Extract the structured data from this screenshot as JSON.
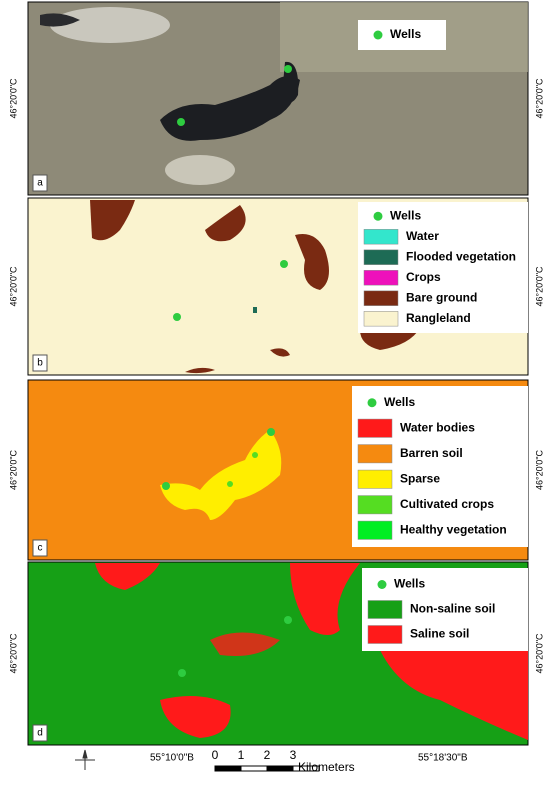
{
  "coordinates": {
    "lat": "46°20'0\"C",
    "lon_left": "55°10'0\"B",
    "lon_right": "55°18'30\"B"
  },
  "panels": [
    {
      "label": "a",
      "legend": [
        {
          "label": "Wells",
          "color": "#2ecc40"
        }
      ]
    },
    {
      "label": "b",
      "legend": [
        {
          "label": "Wells",
          "color": "#2ecc40"
        },
        {
          "label": "Water",
          "color": "#33e6cc"
        },
        {
          "label": "Flooded vegetation",
          "color": "#1d6b55"
        },
        {
          "label": "Crops",
          "color": "#ee11bb"
        },
        {
          "label": "Bare ground",
          "color": "#7a2a12"
        },
        {
          "label": "Rangleland",
          "color": "#faf3cf"
        }
      ]
    },
    {
      "label": "c",
      "legend": [
        {
          "label": "Wells",
          "color": "#2ecc40"
        },
        {
          "label": "Water bodies",
          "color": "#ff1a1a"
        },
        {
          "label": "Barren soil",
          "color": "#f58a10"
        },
        {
          "label": "Sparse",
          "color": "#ffee00"
        },
        {
          "label": "Cultivated crops",
          "color": "#55dd22"
        },
        {
          "label": "Healthy vegetation",
          "color": "#00ee22"
        }
      ]
    },
    {
      "label": "d",
      "legend": [
        {
          "label": "Wells",
          "color": "#2ecc40"
        },
        {
          "label": "Non-saline soil",
          "color": "#16a016"
        },
        {
          "label": "Saline soil",
          "color": "#ff1a1a"
        }
      ]
    }
  ],
  "scale_bar": {
    "ticks": [
      "0",
      "1",
      "2",
      "3"
    ],
    "unit": "Kilometers"
  }
}
